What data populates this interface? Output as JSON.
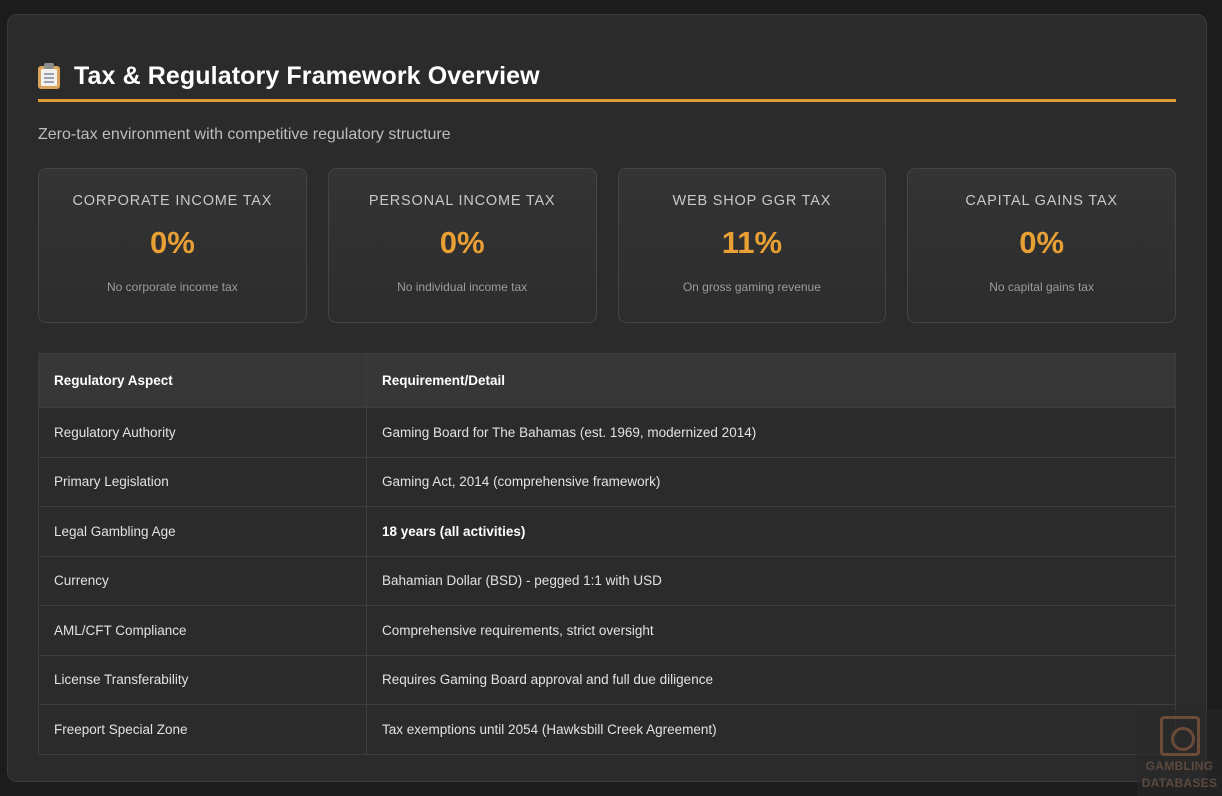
{
  "header": {
    "icon": "clipboard-icon",
    "title": "Tax & Regulatory Framework Overview",
    "accent_color": "#e09b2e"
  },
  "subtitle": "Zero-tax environment with competitive regulatory structure",
  "cards": [
    {
      "label": "CORPORATE INCOME TAX",
      "value": "0%",
      "desc": "No corporate income tax"
    },
    {
      "label": "PERSONAL INCOME TAX",
      "value": "0%",
      "desc": "No individual income tax"
    },
    {
      "label": "WEB SHOP GGR TAX",
      "value": "11%",
      "desc": "On gross gaming revenue"
    },
    {
      "label": "CAPITAL GAINS TAX",
      "value": "0%",
      "desc": "No capital gains tax"
    }
  ],
  "table": {
    "headers": [
      "Regulatory Aspect",
      "Requirement/Detail"
    ],
    "rows": [
      [
        "Regulatory Authority",
        "Gaming Board for The Bahamas (est. 1969, modernized 2014)"
      ],
      [
        "Primary Legislation",
        "Gaming Act, 2014 (comprehensive framework)"
      ],
      [
        "Legal Gambling Age",
        "18 years (all activities)"
      ],
      [
        "Currency",
        "Bahamian Dollar (BSD) - pegged 1:1 with USD"
      ],
      [
        "AML/CFT Compliance",
        "Comprehensive requirements, strict oversight"
      ],
      [
        "License Transferability",
        "Requires Gaming Board approval and full due diligence"
      ],
      [
        "Freeport Special Zone",
        "Tax exemptions until 2054 (Hawksbill Creek Agreement)"
      ]
    ]
  },
  "watermark": {
    "line1": "GAMBLING",
    "line2": "DATABASES"
  }
}
